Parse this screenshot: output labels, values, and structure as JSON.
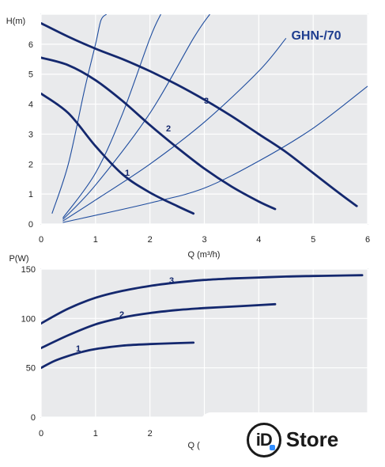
{
  "chart_data": [
    {
      "type": "line",
      "title": "GHN-/70",
      "ylabel": "H(m)",
      "xlabel": "Q (m³/h)",
      "xlim": [
        0,
        6
      ],
      "ylim": [
        0,
        7
      ],
      "xticks": [
        "0",
        "1",
        "2",
        "3",
        "4",
        "5",
        "6"
      ],
      "yticks": [
        "0",
        "1",
        "2",
        "3",
        "4",
        "5",
        "6"
      ],
      "grid": true,
      "series": [
        {
          "name": "1",
          "x": [
            0,
            0.5,
            1.0,
            1.5,
            2.0,
            2.5,
            2.8
          ],
          "y": [
            4.35,
            3.7,
            2.6,
            1.65,
            1.05,
            0.6,
            0.35
          ]
        },
        {
          "name": "2",
          "x": [
            0,
            0.5,
            1.0,
            1.5,
            2.0,
            2.5,
            3.0,
            3.5,
            4.0,
            4.3
          ],
          "y": [
            5.55,
            5.3,
            4.8,
            4.1,
            3.3,
            2.55,
            1.85,
            1.25,
            0.75,
            0.5
          ]
        },
        {
          "name": "3",
          "x": [
            0,
            0.5,
            1.0,
            1.5,
            2.0,
            2.5,
            3.0,
            3.5,
            4.0,
            4.5,
            5.0,
            5.5,
            5.8
          ],
          "y": [
            6.7,
            6.25,
            5.85,
            5.5,
            5.1,
            4.65,
            4.15,
            3.6,
            3.0,
            2.4,
            1.7,
            1.0,
            0.6
          ]
        }
      ],
      "system_curves": [
        {
          "x": [
            0.2,
            0.5,
            0.8,
            1.0,
            1.1,
            1.2
          ],
          "y": [
            0.35,
            2.0,
            4.5,
            6.0,
            6.8,
            7.0
          ]
        },
        {
          "x": [
            0.4,
            1.0,
            1.5,
            2.0,
            2.2
          ],
          "y": [
            0.2,
            1.7,
            3.7,
            6.2,
            7.0
          ]
        },
        {
          "x": [
            0.4,
            1.0,
            2.0,
            2.8,
            3.1
          ],
          "y": [
            0.15,
            1.3,
            3.7,
            6.2,
            7.0
          ]
        },
        {
          "x": [
            0.4,
            1.0,
            2.0,
            3.0,
            4.0,
            4.5
          ],
          "y": [
            0.1,
            0.8,
            2.0,
            3.4,
            5.1,
            6.2
          ]
        },
        {
          "x": [
            0.4,
            2.0,
            3.0,
            4.0,
            5.0,
            6.0
          ],
          "y": [
            0.05,
            0.7,
            1.2,
            2.1,
            3.2,
            4.6
          ]
        }
      ]
    },
    {
      "type": "line",
      "title": "",
      "ylabel": "P(W)",
      "xlabel": "Q (m³/h)",
      "xlim": [
        0,
        6
      ],
      "ylim": [
        0,
        150
      ],
      "xticks": [
        "0",
        "1",
        "2"
      ],
      "yticks": [
        "0",
        "50",
        "100",
        "150"
      ],
      "grid": true,
      "series": [
        {
          "name": "1",
          "x": [
            0,
            0.25,
            0.5,
            0.75,
            1.0,
            1.5,
            2.0,
            2.5,
            2.8
          ],
          "y": [
            50,
            57,
            62,
            66,
            69,
            72.5,
            74,
            75,
            75.5
          ]
        },
        {
          "name": "2",
          "x": [
            0,
            0.5,
            1.0,
            1.5,
            2.0,
            2.5,
            3.0,
            3.5,
            4.0,
            4.3
          ],
          "y": [
            70,
            83,
            94,
            101,
            105.5,
            108.5,
            110.5,
            112,
            113.5,
            114.5
          ]
        },
        {
          "name": "3",
          "x": [
            0,
            0.5,
            1.0,
            1.5,
            2.0,
            2.5,
            3.0,
            3.5,
            4.0,
            4.5,
            5.0,
            5.5,
            5.9
          ],
          "y": [
            95,
            110,
            121,
            128,
            133,
            136.5,
            139,
            140.5,
            141.5,
            142.5,
            143,
            143.5,
            143.8
          ]
        }
      ]
    }
  ],
  "watermark": {
    "badge": "iD",
    "text": "Store"
  }
}
